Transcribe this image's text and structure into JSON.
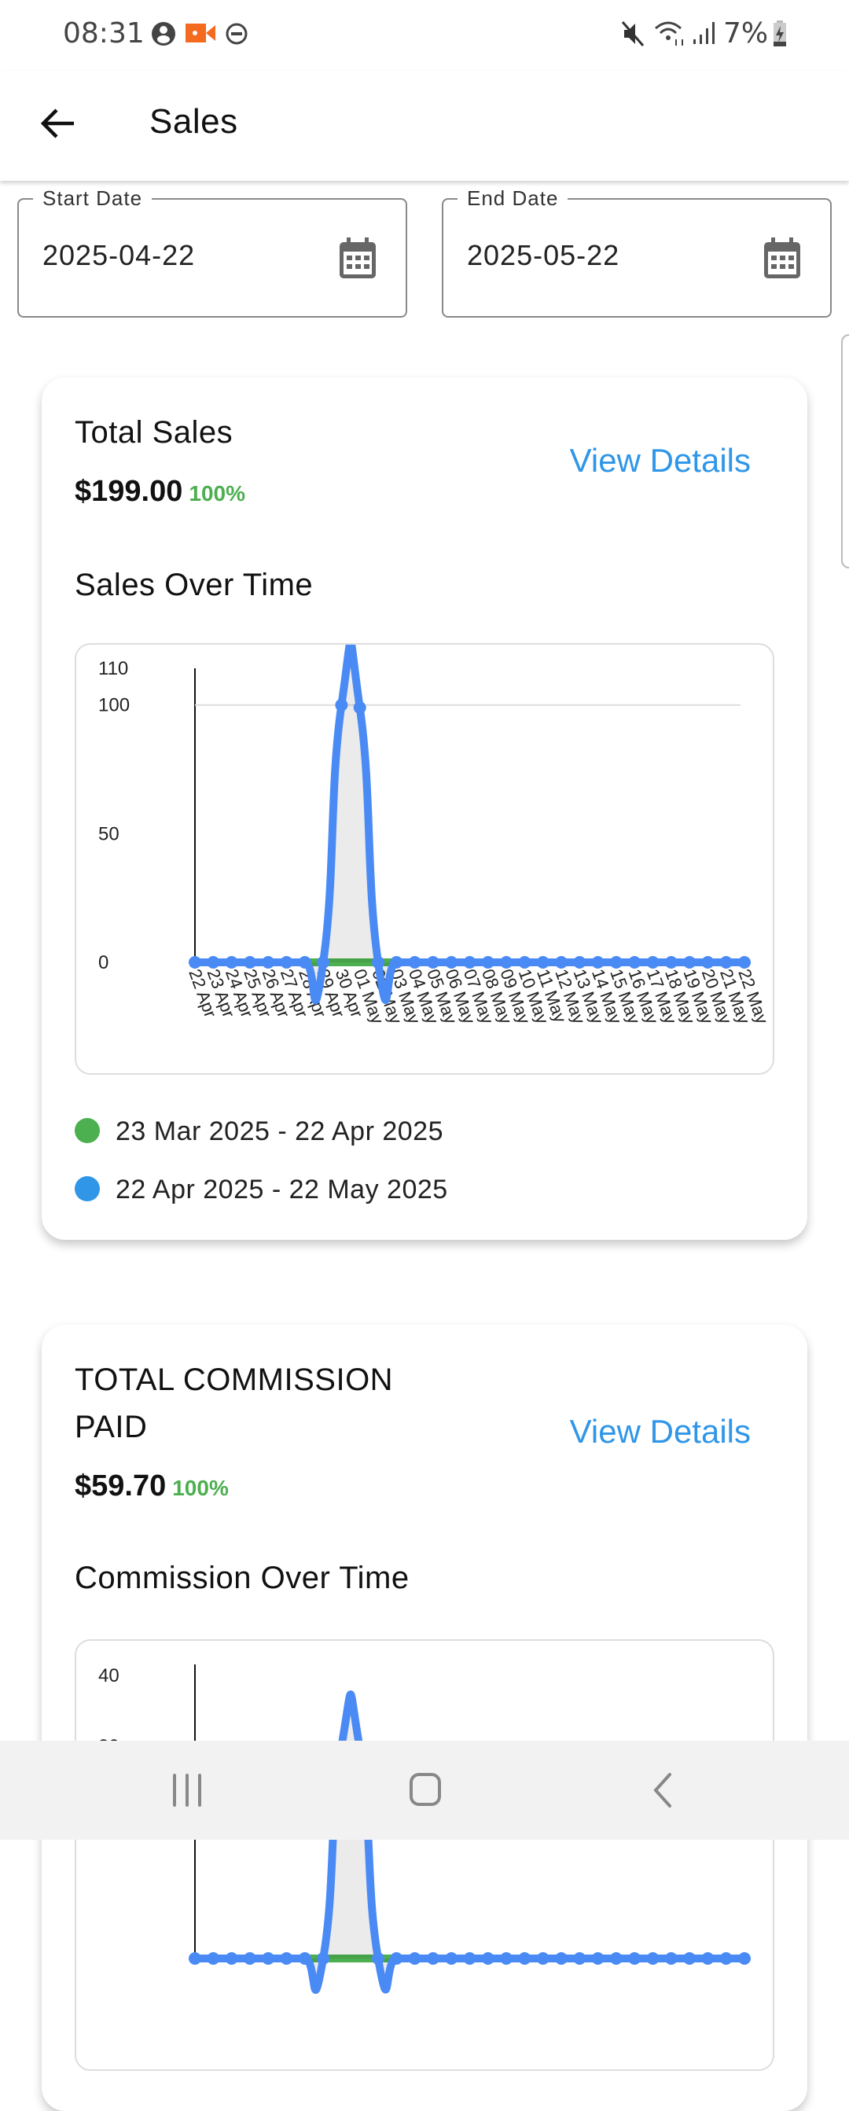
{
  "status_bar": {
    "time": "08:31",
    "battery": "7%"
  },
  "app_bar": {
    "title": "Sales",
    "back_icon": "arrow-left-icon"
  },
  "filters": {
    "start_label": "Start Date",
    "start_value": "2025-04-22",
    "end_label": "End Date",
    "end_value": "2025-05-22"
  },
  "colors": {
    "accent": "#2f96e8",
    "positive": "#4caf50",
    "current_series": "#4a8af4",
    "previous_series": "#4caf50"
  },
  "sales_card": {
    "title": "Total Sales",
    "amount": "$199.00",
    "change": "100%",
    "view_details": "View Details",
    "chart_title": "Sales Over Time",
    "legend": [
      {
        "label": "23 Mar 2025 - 22 Apr 2025",
        "color": "#4caf50"
      },
      {
        "label": "22 Apr 2025 - 22 May 2025",
        "color": "#2f96e8"
      }
    ]
  },
  "commission_card": {
    "title_line1": "TOTAL COMMISSION",
    "title_line2": "PAID",
    "amount": "$59.70",
    "change": "100%",
    "view_details": "View Details",
    "chart_title": "Commission Over Time"
  },
  "chart_data": [
    {
      "type": "line",
      "title": "Sales Over Time",
      "ylim": [
        0,
        110
      ],
      "yticks": [
        0,
        50,
        100,
        110
      ],
      "grid": "horizontal at 100",
      "legend": "bottom",
      "categories": [
        "22 Apr",
        "23 Apr",
        "24 Apr",
        "25 Apr",
        "26 Apr",
        "27 Apr",
        "28 Apr",
        "29 Apr",
        "30 Apr",
        "01 May",
        "02 May",
        "03 May",
        "04 May",
        "05 May",
        "06 May",
        "07 May",
        "08 May",
        "09 May",
        "10 May",
        "11 May",
        "12 May",
        "13 May",
        "14 May",
        "15 May",
        "16 May",
        "17 May",
        "18 May",
        "19 May",
        "20 May",
        "21 May",
        "22 May"
      ],
      "series": [
        {
          "name": "23 Mar 2025 - 22 Apr 2025",
          "color": "#4caf50",
          "values": [
            0,
            0,
            0,
            0,
            0,
            0,
            0,
            0,
            0,
            0,
            0,
            0,
            0,
            0,
            0,
            0,
            0,
            0,
            0,
            0,
            0,
            0,
            0,
            0,
            0,
            0,
            0,
            0,
            0,
            0,
            0
          ]
        },
        {
          "name": "22 Apr 2025 - 22 May 2025",
          "color": "#4a8af4",
          "values": [
            0,
            0,
            0,
            0,
            0,
            0,
            0,
            0,
            100,
            99,
            0,
            0,
            0,
            0,
            0,
            0,
            0,
            0,
            0,
            0,
            0,
            0,
            0,
            0,
            0,
            0,
            0,
            0,
            0,
            0,
            0
          ]
        }
      ]
    },
    {
      "type": "line",
      "title": "Commission Over Time",
      "ylim": [
        0,
        40
      ],
      "yticks": [
        30,
        40
      ],
      "series": [
        {
          "color": "#4caf50",
          "values": [
            0,
            0,
            0,
            0,
            0,
            0,
            0,
            0,
            0,
            0,
            0,
            0,
            0,
            0,
            0,
            0,
            0,
            0,
            0,
            0,
            0,
            0,
            0,
            0,
            0,
            0,
            0,
            0,
            0,
            0,
            0
          ]
        },
        {
          "color": "#4a8af4",
          "values": [
            0,
            0,
            0,
            0,
            0,
            0,
            0,
            0,
            30,
            29.7,
            0,
            0,
            0,
            0,
            0,
            0,
            0,
            0,
            0,
            0,
            0,
            0,
            0,
            0,
            0,
            0,
            0,
            0,
            0,
            0,
            0
          ]
        }
      ]
    }
  ]
}
